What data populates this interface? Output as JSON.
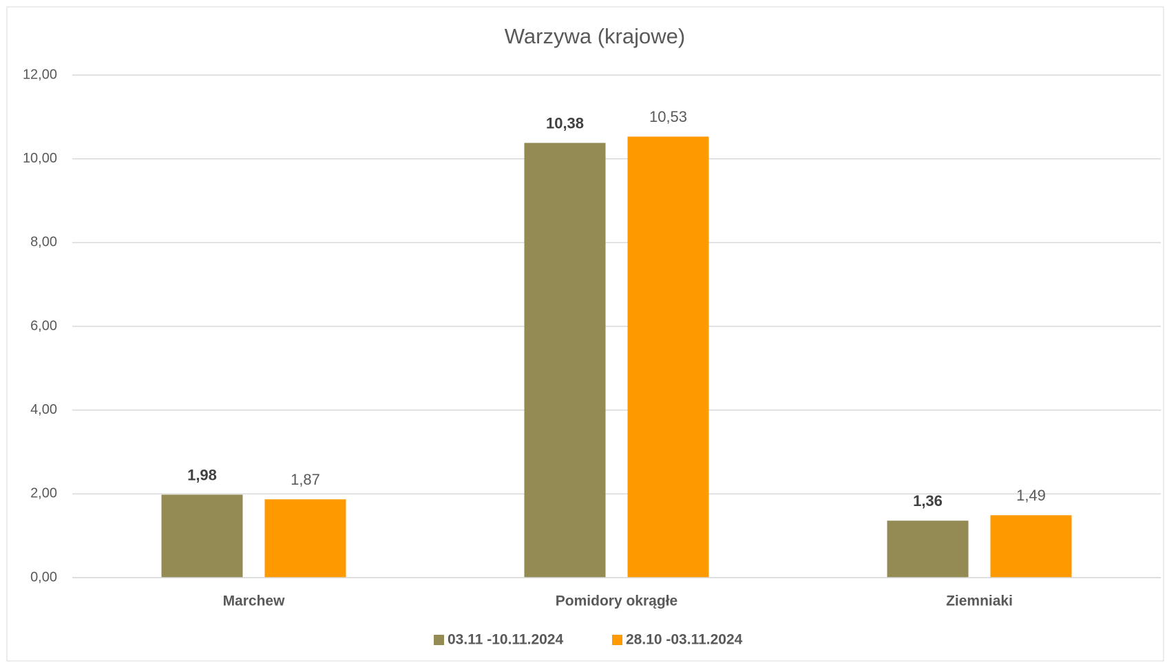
{
  "chart_data": {
    "type": "bar",
    "title": "Warzywa (krajowe)",
    "categories": [
      "Marchew",
      "Pomidory okrągłe",
      "Ziemniaki"
    ],
    "series": [
      {
        "name": "03.11 -10.11.2024",
        "color": "#948a54",
        "values": [
          1.98,
          10.38,
          1.36
        ],
        "value_labels": [
          "1,98",
          "10,38",
          "1,36"
        ]
      },
      {
        "name": "28.10 -03.11.2024",
        "color": "#ff9900",
        "values": [
          1.87,
          10.53,
          1.49
        ],
        "value_labels": [
          "1,87",
          "10,53",
          "1,49"
        ]
      }
    ],
    "ylim": [
      0,
      12
    ],
    "yticks": [
      {
        "value": 0,
        "label": "0,00"
      },
      {
        "value": 2,
        "label": "2,00"
      },
      {
        "value": 4,
        "label": "4,00"
      },
      {
        "value": 6,
        "label": "6,00"
      },
      {
        "value": 8,
        "label": "8,00"
      },
      {
        "value": 10,
        "label": "10,00"
      },
      {
        "value": 12,
        "label": "12,00"
      }
    ],
    "grid": true,
    "legend": "bottom"
  }
}
